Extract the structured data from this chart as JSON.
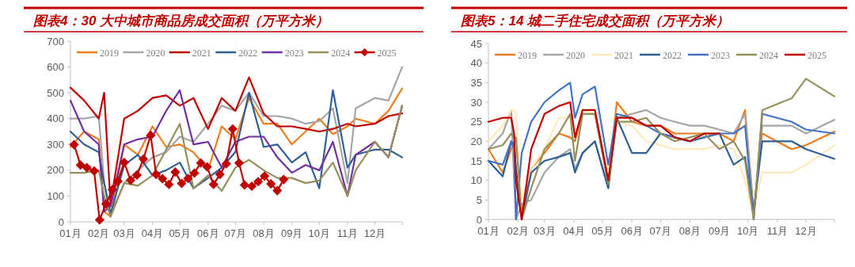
{
  "chart_data": [
    {
      "type": "line",
      "title": "图表4：30 大中城市商品房成交面积（万平方米）",
      "x": [
        "--01-01",
        "--01-16",
        "--02-01",
        "--02-07",
        "--02-14",
        "--03-01",
        "--03-16",
        "--04-01",
        "--04-16",
        "--05-01",
        "--05-16",
        "--06-01",
        "--06-16",
        "--07-01",
        "--07-16",
        "--08-01",
        "--08-16",
        "--09-01",
        "--09-16",
        "--10-01",
        "--10-16",
        "--11-01",
        "--11-10",
        "--12-01",
        "--12-16",
        "--12-31"
      ],
      "xlim": [
        "--01-01",
        "--12-31"
      ],
      "xticks": [
        {
          "value": "--01-01",
          "label": "01月"
        },
        {
          "value": "--02-01",
          "label": "02月"
        },
        {
          "value": "--03-01",
          "label": "03月"
        },
        {
          "value": "--04-01",
          "label": "04月"
        },
        {
          "value": "--05-01",
          "label": "05月"
        },
        {
          "value": "--06-01",
          "label": "06月"
        },
        {
          "value": "--07-01",
          "label": "07月"
        },
        {
          "value": "--08-01",
          "label": "08月"
        },
        {
          "value": "--09-01",
          "label": "09月"
        },
        {
          "value": "--10-01",
          "label": "10月"
        },
        {
          "value": "--11-01",
          "label": "11月"
        },
        {
          "value": "--12-01",
          "label": "12月"
        },
        {
          "value": "--12-31",
          "label": null
        }
      ],
      "ylim": [
        0,
        700
      ],
      "yticks": [
        0,
        100,
        200,
        300,
        400,
        500,
        600,
        700
      ],
      "grid": false,
      "legend": "top",
      "marker": "none",
      "line_style": "solid",
      "series": [
        {
          "name": "2019",
          "color": "#f07c1b",
          "values": [
            290,
            350,
            320,
            40,
            20,
            300,
            260,
            370,
            290,
            300,
            270,
            200,
            370,
            320,
            480,
            380,
            380,
            300,
            350,
            400,
            340,
            370,
            400,
            380,
            430,
            517
          ]
        },
        {
          "name": "2020",
          "color": "#a5a5a5",
          "values": [
            400,
            400,
            410,
            150,
            30,
            150,
            200,
            250,
            270,
            330,
            310,
            380,
            450,
            430,
            500,
            410,
            410,
            400,
            380,
            390,
            440,
            150,
            440,
            480,
            470,
            600
          ]
        },
        {
          "name": "2021",
          "color": "#c00000",
          "values": [
            520,
            470,
            400,
            500,
            70,
            400,
            430,
            480,
            490,
            450,
            480,
            360,
            480,
            430,
            560,
            420,
            370,
            370,
            360,
            350,
            360,
            380,
            370,
            380,
            410,
            420
          ]
        },
        {
          "name": "2022",
          "color": "#2e5f95",
          "values": [
            350,
            300,
            270,
            150,
            30,
            220,
            260,
            180,
            200,
            230,
            130,
            170,
            210,
            270,
            500,
            290,
            300,
            230,
            270,
            130,
            510,
            210,
            260,
            280,
            280,
            250
          ]
        },
        {
          "name": "2023",
          "color": "#7030a0",
          "values": [
            470,
            350,
            300,
            40,
            60,
            300,
            320,
            330,
            430,
            510,
            300,
            310,
            210,
            310,
            330,
            330,
            250,
            190,
            220,
            200,
            310,
            100,
            260,
            310,
            250,
            450
          ]
        },
        {
          "name": "2024",
          "color": "#968f5c",
          "values": [
            190,
            190,
            200,
            100,
            20,
            150,
            140,
            180,
            280,
            380,
            130,
            180,
            120,
            210,
            240,
            200,
            170,
            170,
            150,
            160,
            230,
            100,
            200,
            310,
            250,
            450
          ]
        },
        {
          "name": "2025",
          "color": "#c00000",
          "marker": "diamond",
          "x": [
            "--01-05",
            "--01-12",
            "--01-19",
            "--01-27",
            "--02-02",
            "--02-09",
            "--02-16",
            "--02-22",
            "--03-01",
            "--03-08",
            "--03-15",
            "--03-22",
            "--03-30",
            "--04-05",
            "--04-12",
            "--04-19",
            "--04-26",
            "--05-03",
            "--05-10",
            "--05-17",
            "--05-24",
            "--05-31",
            "--06-07",
            "--06-14",
            "--06-21",
            "--06-28",
            "--07-05",
            "--07-11",
            "--07-19",
            "--07-26",
            "--08-02",
            "--08-09",
            "--08-16",
            "--08-23"
          ],
          "values": [
            299,
            220,
            210,
            197,
            8,
            69,
            125,
            157,
            230,
            161,
            181,
            243,
            335,
            184,
            167,
            145,
            193,
            149,
            168,
            189,
            228,
            213,
            145,
            184,
            225,
            360,
            228,
            143,
            138,
            156,
            177,
            147,
            121,
            164
          ]
        }
      ]
    },
    {
      "type": "line",
      "title": "图表5：14 城二手住宅成交面积（万平方米）",
      "x": [
        "--01-01",
        "--01-16",
        "--01-25",
        "--01-28",
        "--01-30",
        "--02-05",
        "--02-15",
        "--03-01",
        "--03-16",
        "--03-28",
        "--04-02",
        "--04-10",
        "--04-23",
        "--05-07",
        "--05-16",
        "--06-01",
        "--06-16",
        "--07-01",
        "--07-16",
        "--08-01",
        "--08-16",
        "--09-01",
        "--09-16",
        "--09-28",
        "--10-07",
        "--10-16",
        "--11-16",
        "--12-01",
        "--12-31"
      ],
      "xlim": [
        "--01-01",
        "--12-31"
      ],
      "xticks": [
        {
          "value": "--01-01",
          "label": "01月"
        },
        {
          "value": "--02-01",
          "label": "02月"
        },
        {
          "value": "--03-01",
          "label": "03月"
        },
        {
          "value": "--04-01",
          "label": "04月"
        },
        {
          "value": "--05-01",
          "label": "05月"
        },
        {
          "value": "--06-01",
          "label": "06月"
        },
        {
          "value": "--07-01",
          "label": "07月"
        },
        {
          "value": "--08-01",
          "label": "08月"
        },
        {
          "value": "--09-01",
          "label": "09月"
        },
        {
          "value": "--10-01",
          "label": "10月"
        },
        {
          "value": "--11-01",
          "label": "11月"
        },
        {
          "value": "--12-01",
          "label": "12月"
        },
        {
          "value": "--12-31",
          "label": null
        }
      ],
      "ylim": [
        0,
        45
      ],
      "yticks": [
        0,
        5,
        10,
        15,
        20,
        25,
        30,
        35,
        40,
        45
      ],
      "grid": false,
      "legend": "top",
      "marker": "none",
      "line_style": "solid",
      "series": [
        {
          "name": "2019",
          "color": "#f07c1b",
          "values": [
            18,
            12,
            18,
            20,
            10,
            2,
            13,
            17,
            22,
            21,
            20,
            27,
            27,
            10,
            30,
            25,
            24,
            24,
            22,
            22,
            22,
            22,
            20,
            28,
            2,
            22,
            18,
            19,
            22.5
          ]
        },
        {
          "name": "2020",
          "color": "#a5a5a5",
          "values": [
            18,
            22,
            28,
            10,
            0,
            4,
            5,
            12,
            16,
            18,
            13,
            17,
            20,
            8,
            26,
            27,
            28,
            26,
            25,
            24,
            24,
            23,
            22,
            27,
            1,
            24,
            24,
            22,
            25.5
          ]
        },
        {
          "name": "2021",
          "color": "#ffe9b8",
          "values": [
            20,
            24,
            28,
            28,
            27,
            5,
            13,
            18,
            26,
            26,
            27,
            28,
            27,
            12,
            25,
            24,
            20,
            19,
            18,
            18,
            18,
            19,
            18,
            10,
            2,
            12,
            12,
            14,
            19
          ]
        },
        {
          "name": "2022",
          "color": "#2e5f95",
          "values": [
            15,
            11,
            20,
            19,
            13,
            0,
            12,
            15,
            16,
            17,
            12,
            17,
            20,
            8,
            26,
            17,
            17,
            22,
            21,
            20,
            21,
            22,
            14,
            16,
            2,
            20,
            20,
            18,
            15.5
          ]
        },
        {
          "name": "2023",
          "color": "#4472c4",
          "values": [
            15,
            14,
            20,
            18,
            0,
            17,
            25,
            30,
            33,
            35,
            26,
            32,
            34,
            14,
            27,
            26,
            24,
            22,
            21,
            20,
            21,
            22,
            22,
            24,
            0,
            27,
            25,
            23,
            22
          ]
        },
        {
          "name": "2024",
          "color": "#968f5c",
          "values": [
            18,
            19,
            22,
            21,
            21,
            0,
            8,
            18,
            22,
            27,
            15,
            27,
            27,
            9,
            25,
            25,
            26,
            22,
            20,
            21,
            22,
            18,
            20,
            15,
            0,
            28,
            31,
            36,
            31.5
          ]
        },
        {
          "name": "2025",
          "color": "#c00000",
          "x": [
            "--01-01",
            "--01-16",
            "--01-25",
            "--01-28",
            "--01-30",
            "--02-05",
            "--02-15",
            "--03-01",
            "--03-16",
            "--03-28",
            "--04-02",
            "--04-10",
            "--04-23",
            "--05-07",
            "--05-16",
            "--06-01",
            "--06-16",
            "--07-01",
            "--07-16",
            "--08-01",
            "--08-16",
            "--09-01"
          ],
          "values": [
            25,
            26,
            26,
            22,
            10,
            0,
            18,
            27,
            29,
            30,
            21,
            28,
            28,
            10,
            26,
            26,
            24,
            24,
            21,
            20,
            22,
            22
          ]
        }
      ]
    }
  ]
}
